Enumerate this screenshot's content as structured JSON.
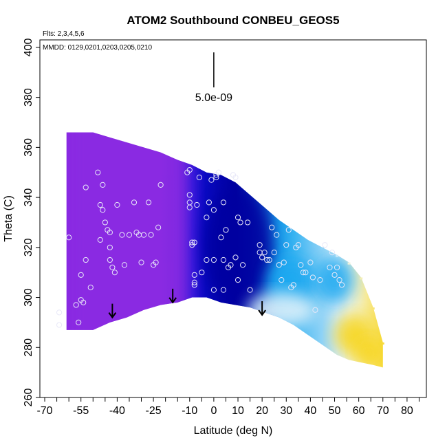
{
  "chart_data": {
    "type": "heatmap",
    "title": "ATOM2 Southbound CONBEU_GEOS5",
    "flights_text": "Flts: 2,3,4,5,6",
    "dates_text": "MMDD: 0129,0201,0203,0205,0210",
    "xlabel": "Latitude (deg N)",
    "ylabel": "Theta (C)",
    "xlim": [
      -72,
      88
    ],
    "ylim": [
      260,
      403
    ],
    "xticks": [
      -70,
      -65,
      -60,
      -55,
      -50,
      -45,
      -40,
      -35,
      -30,
      -25,
      -20,
      -15,
      -10,
      -5,
      0,
      5,
      10,
      15,
      20,
      25,
      30,
      35,
      40,
      45,
      50,
      55,
      60,
      65,
      70,
      75,
      80,
      85
    ],
    "xtick_labels": [
      "-70",
      "-55",
      "-40",
      "-25",
      "-10",
      "0",
      "10",
      "20",
      "30",
      "40",
      "50",
      "60",
      "70",
      "80"
    ],
    "xtick_label_values": [
      -70,
      -55,
      -40,
      -25,
      -10,
      0,
      10,
      20,
      30,
      40,
      50,
      60,
      70,
      80
    ],
    "yticks": [
      260,
      280,
      300,
      320,
      340,
      360,
      380,
      400
    ],
    "ytick_labels": [
      "260",
      "280",
      "300",
      "320",
      "340",
      "360",
      "380",
      "400"
    ],
    "scale_bar": {
      "label": "5.0e-09",
      "x": 0,
      "y_top": 398,
      "y_bottom": 384
    },
    "colors": {
      "violet": "#8a2be2",
      "blue": "#1010d8",
      "navy": "#0000a0",
      "sky": "#1aa8f0",
      "pale": "#e8f4fa",
      "yellow": "#f7d51a",
      "point": "#e8e8f8"
    },
    "field_columns": [
      {
        "lat": -57,
        "theta_top": 366,
        "theta_bottom": 287,
        "value": 0.12
      },
      {
        "lat": -50,
        "theta_top": 366,
        "theta_bottom": 287,
        "value": 0.12
      },
      {
        "lat": -43,
        "theta_top": 364,
        "theta_bottom": 290,
        "value": 0.13
      },
      {
        "lat": -36,
        "theta_top": 362,
        "theta_bottom": 292,
        "value": 0.14
      },
      {
        "lat": -29,
        "theta_top": 360,
        "theta_bottom": 295,
        "value": 0.15
      },
      {
        "lat": -22,
        "theta_top": 358,
        "theta_bottom": 297,
        "value": 0.17
      },
      {
        "lat": -15,
        "theta_top": 355,
        "theta_bottom": 298,
        "value": 0.22
      },
      {
        "lat": -9,
        "theta_top": 353,
        "theta_bottom": 300,
        "value": 0.3
      },
      {
        "lat": -3,
        "theta_top": 350,
        "theta_bottom": 300,
        "value": 0.38
      },
      {
        "lat": 3,
        "theta_top": 349,
        "theta_bottom": 298,
        "value": 0.42
      },
      {
        "lat": 9,
        "theta_top": 346,
        "theta_bottom": 297,
        "value": 0.45
      },
      {
        "lat": 15,
        "theta_top": 341,
        "theta_bottom": 296,
        "value": 0.48
      },
      {
        "lat": 21,
        "theta_top": 336,
        "theta_bottom": 294,
        "value": 0.52
      },
      {
        "lat": 27,
        "theta_top": 331,
        "theta_bottom": 292,
        "value": 0.57
      },
      {
        "lat": 33,
        "theta_top": 327,
        "theta_bottom": 289,
        "value": 0.6
      },
      {
        "lat": 39,
        "theta_top": 323,
        "theta_bottom": 285,
        "value": 0.63
      },
      {
        "lat": 45,
        "theta_top": 320,
        "theta_bottom": 281,
        "value": 0.66
      },
      {
        "lat": 51,
        "theta_top": 317,
        "theta_bottom": 277,
        "value": 0.7
      },
      {
        "lat": 56,
        "theta_top": 314,
        "theta_bottom": 275,
        "value": 0.76
      },
      {
        "lat": 61,
        "theta_top": 308,
        "theta_bottom": 274,
        "value": 0.82
      },
      {
        "lat": 66,
        "theta_top": 296,
        "theta_bottom": 273,
        "value": 0.9
      },
      {
        "lat": 70,
        "theta_top": 282,
        "theta_bottom": 272,
        "value": 0.96
      }
    ],
    "field_blobs": [
      {
        "lat": 10,
        "theta": 320,
        "dlat": 14,
        "dtheta": 24,
        "color": "#0000a0"
      },
      {
        "lat": 32,
        "theta": 306,
        "dlat": 10,
        "dtheta": 10,
        "color": "#1aa8f0"
      },
      {
        "lat": 50,
        "theta": 307,
        "dlat": 8,
        "dtheta": 9,
        "color": "#1aa8f0"
      },
      {
        "lat": 28,
        "theta": 295,
        "dlat": 14,
        "dtheta": 7,
        "color": "#e8f4fa"
      },
      {
        "lat": 58,
        "theta": 285,
        "dlat": 8,
        "dtheta": 8,
        "color": "#f7d51a"
      },
      {
        "lat": 64,
        "theta": 278,
        "dlat": 6,
        "dtheta": 6,
        "color": "#f7d51a"
      }
    ],
    "field_violet_edge_lat": -10,
    "arrows": [
      {
        "lat": -42,
        "theta": 292
      },
      {
        "lat": -17,
        "theta": 298
      },
      {
        "lat": 20,
        "theta": 293
      }
    ],
    "sample_points": [
      {
        "lat": -64,
        "theta": 289
      },
      {
        "lat": -64,
        "theta": 294
      },
      {
        "lat": -60,
        "theta": 324
      },
      {
        "lat": -57,
        "theta": 297
      },
      {
        "lat": -56,
        "theta": 290
      },
      {
        "lat": -55,
        "theta": 299
      },
      {
        "lat": -54,
        "theta": 298
      },
      {
        "lat": -55,
        "theta": 309
      },
      {
        "lat": -53,
        "theta": 315
      },
      {
        "lat": -51,
        "theta": 304
      },
      {
        "lat": -53,
        "theta": 344
      },
      {
        "lat": -48,
        "theta": 350
      },
      {
        "lat": -47,
        "theta": 337
      },
      {
        "lat": -46,
        "theta": 335
      },
      {
        "lat": -47,
        "theta": 323
      },
      {
        "lat": -45,
        "theta": 330
      },
      {
        "lat": -46,
        "theta": 345
      },
      {
        "lat": -44,
        "theta": 327
      },
      {
        "lat": -43,
        "theta": 326
      },
      {
        "lat": -43,
        "theta": 320
      },
      {
        "lat": -43,
        "theta": 315
      },
      {
        "lat": -42,
        "theta": 312
      },
      {
        "lat": -41,
        "theta": 310
      },
      {
        "lat": -40,
        "theta": 337
      },
      {
        "lat": -38,
        "theta": 325
      },
      {
        "lat": -37,
        "theta": 313
      },
      {
        "lat": -35,
        "theta": 325
      },
      {
        "lat": -33,
        "theta": 338
      },
      {
        "lat": -32,
        "theta": 326
      },
      {
        "lat": -31,
        "theta": 325
      },
      {
        "lat": -30,
        "theta": 314
      },
      {
        "lat": -29,
        "theta": 325
      },
      {
        "lat": -27,
        "theta": 338
      },
      {
        "lat": -26,
        "theta": 325
      },
      {
        "lat": -25,
        "theta": 313
      },
      {
        "lat": -24,
        "theta": 314
      },
      {
        "lat": -23,
        "theta": 328
      },
      {
        "lat": -22,
        "theta": 345
      },
      {
        "lat": -11,
        "theta": 350
      },
      {
        "lat": -10,
        "theta": 351
      },
      {
        "lat": -10,
        "theta": 341
      },
      {
        "lat": -10,
        "theta": 338
      },
      {
        "lat": -10,
        "theta": 336
      },
      {
        "lat": -9,
        "theta": 322
      },
      {
        "lat": -9,
        "theta": 321
      },
      {
        "lat": -8,
        "theta": 322
      },
      {
        "lat": -8,
        "theta": 309
      },
      {
        "lat": -8,
        "theta": 306
      },
      {
        "lat": -8,
        "theta": 305
      },
      {
        "lat": -7,
        "theta": 337
      },
      {
        "lat": -6,
        "theta": 348
      },
      {
        "lat": -5,
        "theta": 310
      },
      {
        "lat": -3,
        "theta": 315
      },
      {
        "lat": -3,
        "theta": 332
      },
      {
        "lat": -2,
        "theta": 338
      },
      {
        "lat": -1,
        "theta": 347
      },
      {
        "lat": 0,
        "theta": 303
      },
      {
        "lat": 0,
        "theta": 315
      },
      {
        "lat": 0,
        "theta": 335
      },
      {
        "lat": 1,
        "theta": 348
      },
      {
        "lat": 1,
        "theta": 349
      },
      {
        "lat": 2,
        "theta": 350
      },
      {
        "lat": 3,
        "theta": 324
      },
      {
        "lat": 4,
        "theta": 338
      },
      {
        "lat": 4,
        "theta": 315
      },
      {
        "lat": 4,
        "theta": 303
      },
      {
        "lat": 5,
        "theta": 327
      },
      {
        "lat": 6,
        "theta": 312
      },
      {
        "lat": 7,
        "theta": 313
      },
      {
        "lat": 8,
        "theta": 349
      },
      {
        "lat": 9,
        "theta": 348
      },
      {
        "lat": 9,
        "theta": 316
      },
      {
        "lat": 10,
        "theta": 332
      },
      {
        "lat": 10,
        "theta": 307
      },
      {
        "lat": 11,
        "theta": 330
      },
      {
        "lat": 12,
        "theta": 313
      },
      {
        "lat": 14,
        "theta": 330
      },
      {
        "lat": 15,
        "theta": 303
      },
      {
        "lat": 19,
        "theta": 318
      },
      {
        "lat": 19,
        "theta": 321
      },
      {
        "lat": 20,
        "theta": 316
      },
      {
        "lat": 21,
        "theta": 318
      },
      {
        "lat": 22,
        "theta": 315
      },
      {
        "lat": 23,
        "theta": 315
      },
      {
        "lat": 24,
        "theta": 328
      },
      {
        "lat": 25,
        "theta": 318
      },
      {
        "lat": 26,
        "theta": 325
      },
      {
        "lat": 27,
        "theta": 313
      },
      {
        "lat": 28,
        "theta": 307
      },
      {
        "lat": 29,
        "theta": 314
      },
      {
        "lat": 30,
        "theta": 321
      },
      {
        "lat": 31,
        "theta": 327
      },
      {
        "lat": 32,
        "theta": 304
      },
      {
        "lat": 33,
        "theta": 305
      },
      {
        "lat": 34,
        "theta": 320
      },
      {
        "lat": 35,
        "theta": 321
      },
      {
        "lat": 36,
        "theta": 313
      },
      {
        "lat": 37,
        "theta": 310
      },
      {
        "lat": 38,
        "theta": 310
      },
      {
        "lat": 40,
        "theta": 314
      },
      {
        "lat": 41,
        "theta": 308
      },
      {
        "lat": 42,
        "theta": 295
      },
      {
        "lat": 44,
        "theta": 307
      },
      {
        "lat": 46,
        "theta": 321
      },
      {
        "lat": 48,
        "theta": 312
      },
      {
        "lat": 49,
        "theta": 318
      },
      {
        "lat": 50,
        "theta": 309
      },
      {
        "lat": 51,
        "theta": 312
      },
      {
        "lat": 52,
        "theta": 307
      },
      {
        "lat": 53,
        "theta": 305
      }
    ]
  }
}
